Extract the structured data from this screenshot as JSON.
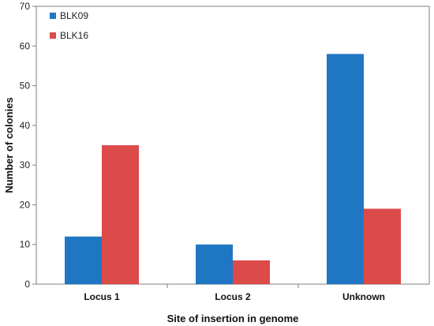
{
  "chart_data": {
    "type": "bar",
    "title": "",
    "xlabel": "Site of insertion in genome",
    "ylabel": "Number of colonies",
    "categories": [
      "Locus 1",
      "Locus 2",
      "Unknown"
    ],
    "series": [
      {
        "name": "BLK09",
        "color": "#1f77c4",
        "values": [
          12,
          10,
          58
        ]
      },
      {
        "name": "BLK16",
        "color": "#dc4a4a",
        "values": [
          35,
          6,
          19
        ]
      }
    ],
    "ylim": [
      0,
      70
    ],
    "yticks": [
      0,
      10,
      20,
      30,
      40,
      50,
      60,
      70
    ],
    "grid": false,
    "legend": "top-left"
  }
}
